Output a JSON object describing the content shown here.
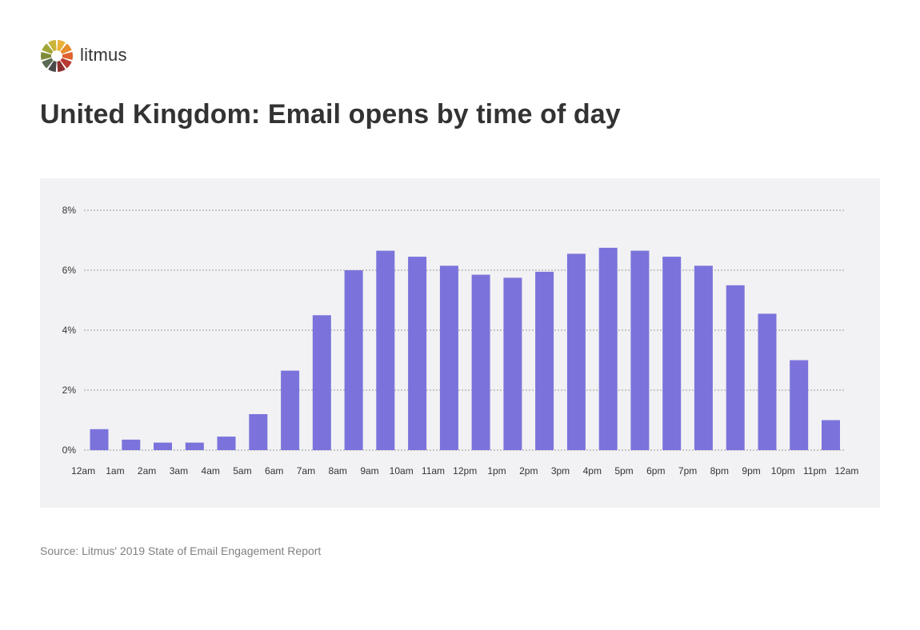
{
  "brand": {
    "name": "litmus",
    "logo_colors": [
      "#e9b23a",
      "#e58c2d",
      "#e0612f",
      "#b93a32",
      "#8e2f2f",
      "#4a4a4a",
      "#5c6b54",
      "#7f8b3a",
      "#a3a63a",
      "#c9b43a"
    ]
  },
  "page": {
    "title": "United Kingdom: Email opens by time of day",
    "source": "Source: Litmus' 2019 State of Email Engagement Report"
  },
  "chart_data": {
    "type": "bar",
    "title": "United Kingdom: Email opens by time of day",
    "xlabel": "",
    "ylabel": "",
    "categories": [
      "12am",
      "1am",
      "2am",
      "3am",
      "4am",
      "5am",
      "6am",
      "7am",
      "8am",
      "9am",
      "10am",
      "11am",
      "12pm",
      "1pm",
      "2pm",
      "3pm",
      "4pm",
      "5pm",
      "6pm",
      "7pm",
      "8pm",
      "9pm",
      "10pm",
      "11pm"
    ],
    "x_tick_labels": [
      "12am",
      "1am",
      "2am",
      "3am",
      "4am",
      "5am",
      "6am",
      "7am",
      "8am",
      "9am",
      "10am",
      "11am",
      "12pm",
      "1pm",
      "2pm",
      "3pm",
      "4pm",
      "5pm",
      "6pm",
      "7pm",
      "8pm",
      "9pm",
      "10pm",
      "11pm",
      "12am"
    ],
    "values": [
      0.7,
      0.35,
      0.25,
      0.25,
      0.45,
      1.2,
      2.65,
      4.5,
      6.0,
      6.65,
      6.45,
      6.15,
      5.85,
      5.75,
      5.95,
      6.55,
      6.75,
      6.65,
      6.45,
      6.15,
      5.5,
      4.55,
      3.0,
      1.0
    ],
    "ylim": [
      0,
      8
    ],
    "y_ticks": [
      0,
      2,
      4,
      6,
      8
    ],
    "y_tick_labels": [
      "0%",
      "2%",
      "4%",
      "6%",
      "8%"
    ],
    "grid": true,
    "grid_style": "dotted",
    "legend": "none",
    "bar_color": "#7b73db",
    "grid_color": "#9a9a9a",
    "tick_color": "#333333"
  }
}
